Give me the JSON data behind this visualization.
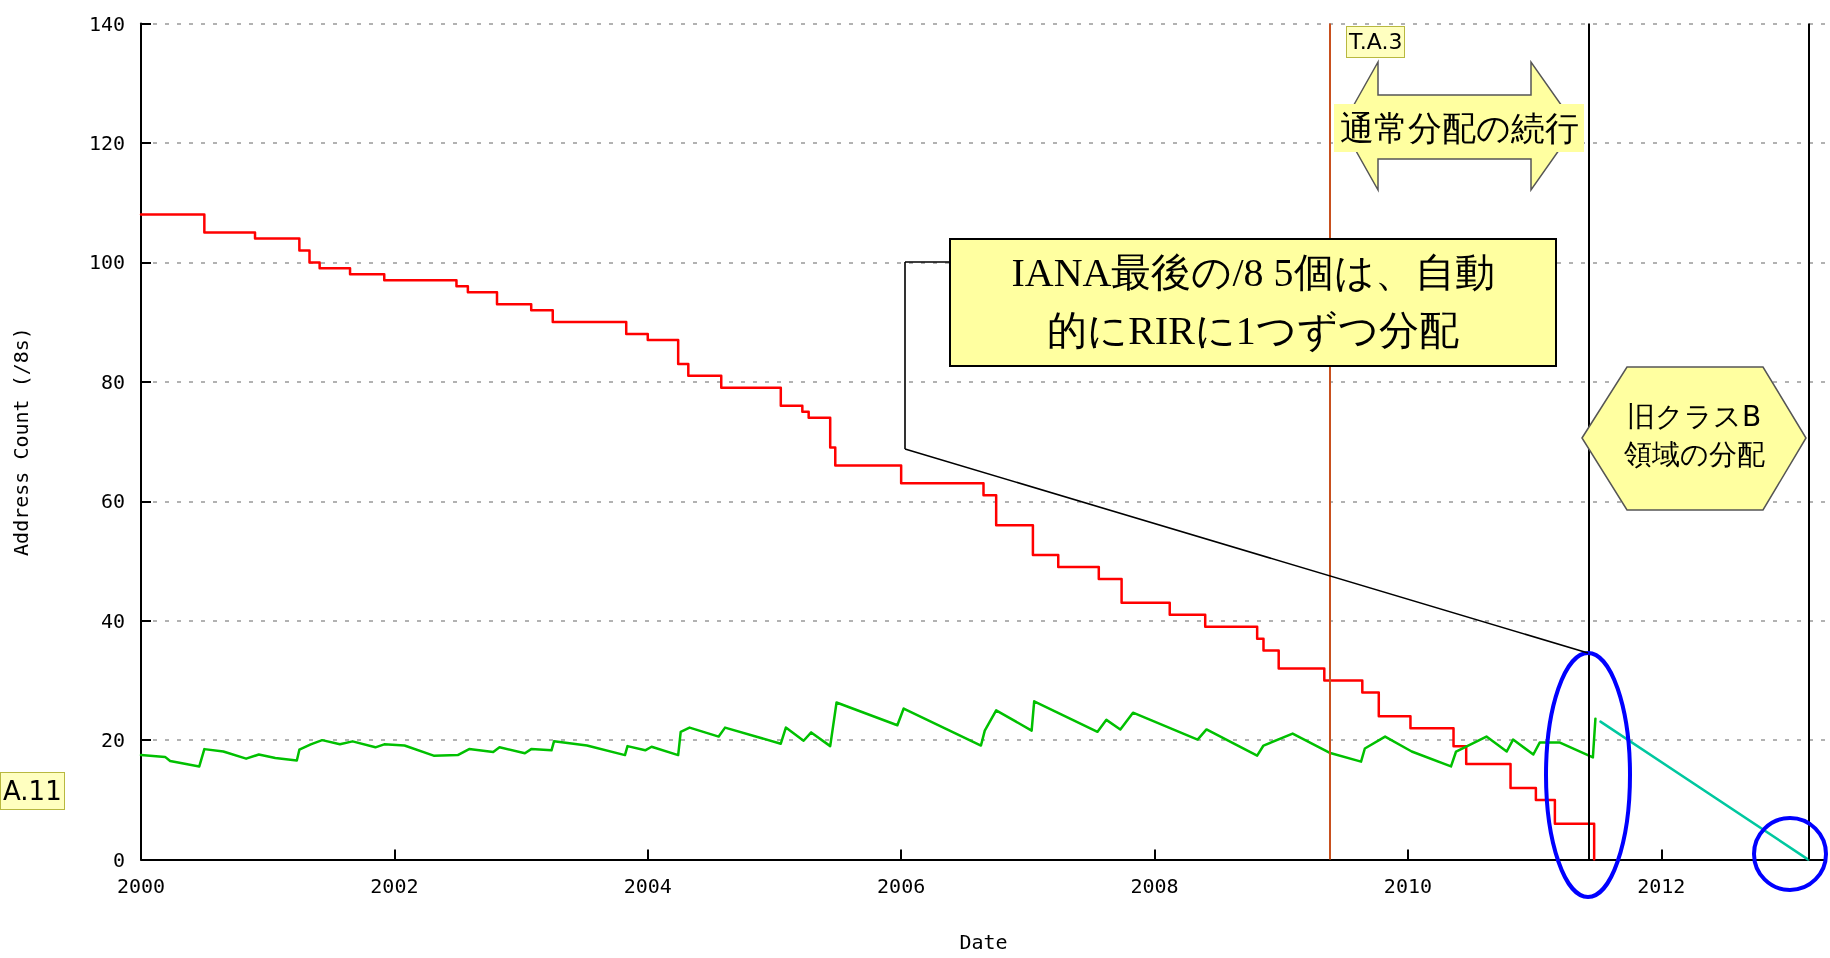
{
  "chart_data": {
    "type": "step",
    "xlabel": "Date",
    "ylabel": "Address Count (/8s)",
    "xlim": [
      2000,
      2013.3
    ],
    "xticks": [
      2000,
      2002,
      2004,
      2006,
      2008,
      2010,
      2012
    ],
    "ylim": [
      0,
      140
    ],
    "yticks": [
      0,
      20,
      40,
      60,
      80,
      100,
      120,
      140
    ],
    "grid": "y",
    "marker": "none",
    "line_style": "solid",
    "series": [
      {
        "color": "#ff0000",
        "x": [
          2000,
          2000.5,
          2000.9,
          2001.25,
          2001.33,
          2001.41,
          2001.65,
          2001.92,
          2002.49,
          2002.58,
          2002.81,
          2003.08,
          2003.25,
          2003.83,
          2004.0,
          2004.24,
          2004.32,
          2004.58,
          2005.05,
          2005.22,
          2005.27,
          2005.44,
          2005.48,
          2006.0,
          2006.65,
          2006.75,
          2007.04,
          2007.24,
          2007.56,
          2007.74,
          2008.12,
          2008.4,
          2008.81,
          2008.86,
          2008.98,
          2009.34,
          2009.64,
          2009.77,
          2010.02,
          2010.36,
          2010.46,
          2010.81,
          2011.01,
          2011.16,
          2011.47
        ],
        "values": [
          108,
          105,
          104,
          102,
          100,
          99,
          98,
          97,
          96,
          95,
          93,
          92,
          90,
          88,
          87,
          83,
          81,
          79,
          76,
          75,
          74,
          69,
          66,
          63,
          61,
          56,
          51,
          49,
          47,
          43,
          41,
          39,
          37,
          35,
          32,
          30,
          28,
          24,
          22,
          19,
          16,
          12,
          10,
          6,
          0
        ]
      },
      {
        "type": "line",
        "color": "#00c000",
        "x": [
          2000.0,
          2000.19,
          2000.23,
          2000.46,
          2000.5,
          2000.65,
          2000.83,
          2000.93,
          2001.06,
          2001.23,
          2001.25,
          2001.34,
          2001.43,
          2001.57,
          2001.67,
          2001.85,
          2001.92,
          2002.08,
          2002.31,
          2002.5,
          2002.59,
          2002.78,
          2002.83,
          2003.03,
          2003.08,
          2003.24,
          2003.26,
          2003.52,
          2003.82,
          2003.84,
          2003.98,
          2004.03,
          2004.24,
          2004.26,
          2004.33,
          2004.56,
          2004.61,
          2005.05,
          2005.09,
          2005.23,
          2005.29,
          2005.44,
          2005.49,
          2005.97,
          2006.02,
          2006.63,
          2006.66,
          2006.75,
          2007.03,
          2007.05,
          2007.55,
          2007.62,
          2007.73,
          2007.83,
          2008.34,
          2008.41,
          2008.81,
          2008.86,
          2009.09,
          2009.38,
          2009.63,
          2009.66,
          2009.82,
          2010.03,
          2010.34,
          2010.38,
          2010.62,
          2010.78,
          2010.83,
          2010.99,
          2011.04,
          2011.2,
          2011.46,
          2011.48
        ],
        "values": [
          17.5,
          17.2,
          16.5,
          15.6,
          18.5,
          18.1,
          16.9,
          17.6,
          17.0,
          16.6,
          18.4,
          19.3,
          20.0,
          19.3,
          19.8,
          18.8,
          19.3,
          19.1,
          17.4,
          17.5,
          18.5,
          18.0,
          18.8,
          17.8,
          18.5,
          18.3,
          19.8,
          19.1,
          17.5,
          19.0,
          18.3,
          18.9,
          17.5,
          21.4,
          22.1,
          20.6,
          22.1,
          19.4,
          22.1,
          19.9,
          21.3,
          19.0,
          26.3,
          22.5,
          25.3,
          19.1,
          21.6,
          25.0,
          21.6,
          26.5,
          21.4,
          23.4,
          21.8,
          24.6,
          20.1,
          21.8,
          17.4,
          19.1,
          21.1,
          17.9,
          16.4,
          18.6,
          20.6,
          18.1,
          15.6,
          18.1,
          20.6,
          18.1,
          20.1,
          17.6,
          19.6,
          19.6,
          17.1,
          23.6
        ]
      },
      {
        "type": "line",
        "color": "#00c8a0",
        "x": [
          2011.52,
          2013.16
        ],
        "values": [
          23.1,
          0
        ]
      }
    ],
    "ref_lines": [
      {
        "axis": "x",
        "value": 2009.38,
        "color": "#c8501e"
      },
      {
        "axis": "x",
        "value": 2011.43,
        "color": "#000000"
      },
      {
        "axis": "x",
        "value": 2013.16,
        "color": "#000000"
      }
    ],
    "annotations": [
      "通常分配の続行",
      "T.A.3",
      "IANA最後の/8 5個は、自動的にRIRに1つずつ分配",
      "旧クラスB\n領域の分配",
      "A.11"
    ]
  }
}
